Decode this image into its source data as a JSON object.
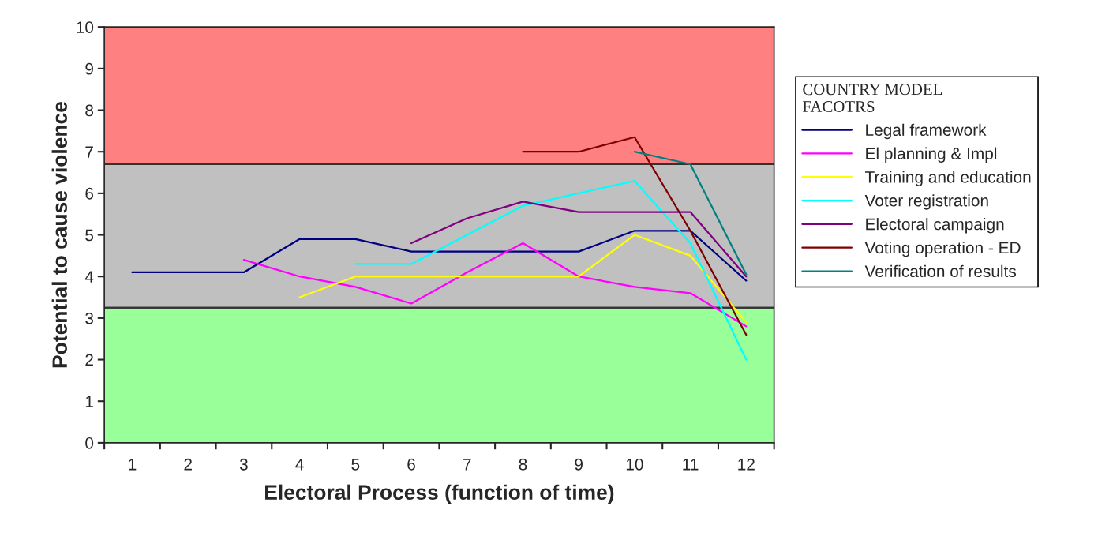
{
  "chart_data": {
    "type": "line",
    "xlabel": "Electoral Process (function of time)",
    "ylabel": "Potential to cause violence",
    "legend_title": "COUNTRY MODEL\nFACOTRS",
    "legend": "right",
    "categories": [
      "1",
      "2",
      "3",
      "4",
      "5",
      "6",
      "7",
      "8",
      "9",
      "10",
      "11",
      "12"
    ],
    "ylim": [
      0,
      10
    ],
    "yticks": [
      0,
      1,
      2,
      3,
      4,
      5,
      6,
      7,
      8,
      9,
      10
    ],
    "grid": false,
    "marker": "none",
    "line_style": "solid",
    "bands": [
      {
        "axis": "y",
        "from": 0,
        "to": 3.25,
        "color": "#99ff99"
      },
      {
        "axis": "y",
        "from": 3.25,
        "to": 6.7,
        "color": "#c0c0c0"
      },
      {
        "axis": "y",
        "from": 6.7,
        "to": 10,
        "color": "#ff8080"
      }
    ],
    "series": [
      {
        "name": "Legal framework",
        "color": "#000080",
        "values": [
          4.1,
          4.1,
          4.1,
          4.9,
          4.9,
          4.6,
          4.6,
          4.6,
          4.6,
          5.1,
          5.1,
          3.9
        ]
      },
      {
        "name": "El planning & Impl",
        "color": "#ff00ff",
        "values": [
          null,
          null,
          4.4,
          4.0,
          3.75,
          3.35,
          4.1,
          4.8,
          4.0,
          3.75,
          3.6,
          2.8
        ]
      },
      {
        "name": "Training and education",
        "color": "#ffff00",
        "values": [
          null,
          null,
          null,
          3.5,
          4.0,
          4.0,
          4.0,
          4.0,
          4.0,
          5.0,
          4.5,
          2.9
        ]
      },
      {
        "name": "Voter registration",
        "color": "#00ffff",
        "values": [
          null,
          null,
          null,
          null,
          4.3,
          4.3,
          5.0,
          5.7,
          6.0,
          6.3,
          4.8,
          2.0
        ]
      },
      {
        "name": "Electoral campaign",
        "color": "#800080",
        "values": [
          null,
          null,
          null,
          null,
          null,
          4.8,
          5.4,
          5.8,
          5.55,
          5.55,
          5.55,
          4.0
        ]
      },
      {
        "name": "Voting operation - ED",
        "color": "#800000",
        "values": [
          null,
          null,
          null,
          null,
          null,
          null,
          null,
          7.0,
          7.0,
          7.35,
          5.1,
          2.6
        ]
      },
      {
        "name": "Verification of results",
        "color": "#008080",
        "values": [
          null,
          null,
          null,
          null,
          null,
          null,
          null,
          null,
          null,
          7.0,
          6.7,
          4.05
        ]
      }
    ]
  }
}
